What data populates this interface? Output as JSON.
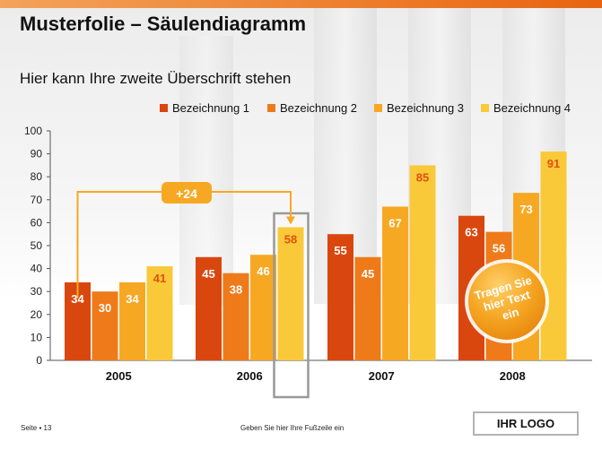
{
  "slide": {
    "title": "Musterfolie – Säulendiagramm",
    "subtitle": "Hier kann Ihre zweite Überschrift stehen",
    "page_label": "Seite ▪ 13",
    "footer": "Geben Sie hier Ihre Fußzeile ein",
    "logo": "IHR LOGO"
  },
  "callouts": {
    "difference_label": "+24",
    "circle_text_lines": [
      "Tragen Sie",
      "hier Text",
      "ein"
    ]
  },
  "colors": {
    "series": [
      "#d9470f",
      "#ef7a1a",
      "#f7a823",
      "#fac93a"
    ],
    "top_bar": "#e8640f",
    "callout": "#f7a823",
    "highlight_box": "#999999"
  },
  "chart_data": {
    "type": "bar",
    "categories": [
      "2005",
      "2006",
      "2007",
      "2008"
    ],
    "series": [
      {
        "name": "Bezeichnung 1",
        "values": [
          34,
          45,
          55,
          63
        ]
      },
      {
        "name": "Bezeichnung 2",
        "values": [
          30,
          38,
          45,
          56
        ]
      },
      {
        "name": "Bezeichnung 3",
        "values": [
          34,
          46,
          67,
          73
        ]
      },
      {
        "name": "Bezeichnung 4",
        "values": [
          41,
          58,
          85,
          91
        ]
      }
    ],
    "ylim": [
      0,
      100
    ],
    "yticks": [
      0,
      10,
      20,
      30,
      40,
      50,
      60,
      70,
      80,
      90,
      100
    ],
    "legend_position": "top-right",
    "grid": false
  }
}
